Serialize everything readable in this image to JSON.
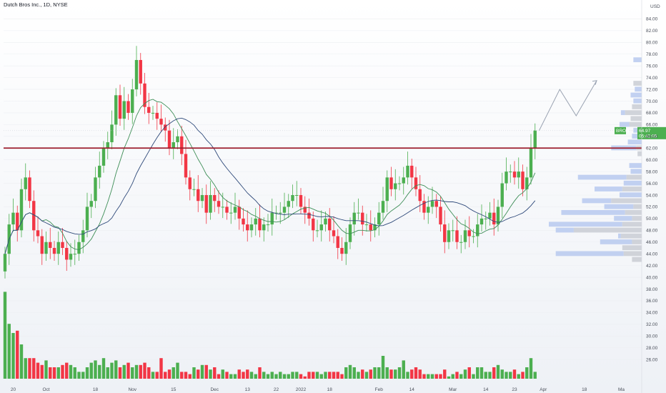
{
  "header": {
    "title": "Dutch Bros Inc., 1D, NYSE"
  },
  "price_scale": {
    "currency": "USD",
    "last_ticker": "BROS",
    "last_price": "64.97",
    "countdown": "05:43:05"
  },
  "colors": {
    "up": "#4caf50",
    "down": "#f23645",
    "ma_fast": "#3e8e57",
    "ma_slow": "#2f4a7a",
    "level": "#9c1c2c",
    "profile_up": "#b7c9ef",
    "profile_down": "#c9ccd4"
  },
  "chart_data": {
    "type": "candlestick",
    "title": "Dutch Bros Inc., 1D, NYSE",
    "ylim": [
      22,
      86
    ],
    "y_ticks": [
      26,
      28,
      30,
      32,
      34,
      36,
      38,
      40,
      42,
      44,
      46,
      48,
      50,
      52,
      54,
      56,
      58,
      60,
      62,
      64,
      66,
      68,
      70,
      72,
      74,
      76,
      78,
      80,
      82,
      84
    ],
    "x_ticks": [
      {
        "label": "20",
        "i": 2
      },
      {
        "label": "Oct",
        "i": 10
      },
      {
        "label": "18",
        "i": 22
      },
      {
        "label": "Nov",
        "i": 31
      },
      {
        "label": "15",
        "i": 41
      },
      {
        "label": "Dec",
        "i": 51
      },
      {
        "label": "13",
        "i": 59
      },
      {
        "label": "22",
        "i": 66
      },
      {
        "label": "2022",
        "i": 72
      },
      {
        "label": "18",
        "i": 79
      },
      {
        "label": "Feb",
        "i": 91
      },
      {
        "label": "14",
        "i": 99
      },
      {
        "label": "Mar",
        "i": 109
      },
      {
        "label": "14",
        "i": 117
      },
      {
        "label": "23",
        "i": 124
      },
      {
        "label": "Apr",
        "i": 131
      },
      {
        "label": "18",
        "i": 141
      },
      {
        "label": "Ma",
        "i": 150
      }
    ],
    "close": [
      44,
      49,
      51,
      48,
      55,
      57,
      53,
      48,
      47,
      44,
      46,
      45,
      44,
      46,
      45,
      43,
      44,
      44,
      46,
      48,
      52,
      53,
      57,
      59,
      62,
      63,
      66,
      71,
      67,
      70,
      68,
      72,
      77,
      73,
      69,
      68,
      68,
      67,
      66,
      65,
      62,
      63,
      64,
      61,
      57,
      55,
      55,
      53,
      54,
      51,
      54,
      53,
      52,
      52,
      51,
      51,
      52,
      50,
      49,
      48,
      49,
      50,
      48,
      49,
      49,
      51,
      51,
      51,
      52,
      53,
      54,
      54,
      52,
      51,
      50,
      48,
      48,
      49,
      50,
      48,
      47,
      45,
      44,
      46,
      49,
      51,
      51,
      49,
      49,
      48,
      49,
      51,
      53,
      57,
      55,
      56,
      56,
      57,
      59,
      57,
      55,
      53,
      51,
      52,
      53,
      52,
      49,
      46,
      48,
      48,
      46,
      46,
      48,
      47,
      47,
      49,
      50,
      50,
      51,
      49,
      52,
      56,
      58,
      58,
      57,
      58,
      55,
      57,
      62,
      65
    ],
    "volume": [
      38,
      24,
      20,
      21,
      15,
      9,
      9,
      9,
      7,
      6,
      8,
      5,
      5,
      5,
      6,
      7,
      6,
      5,
      3,
      3,
      5,
      7,
      8,
      6,
      9,
      5,
      7,
      8,
      5,
      6,
      7,
      5,
      6,
      6,
      7,
      5,
      3,
      3,
      9,
      3,
      4,
      5,
      7,
      3,
      3,
      2,
      5,
      4,
      6,
      6,
      4,
      5,
      2,
      4,
      3,
      2,
      2,
      4,
      3,
      4,
      3,
      2,
      5,
      3,
      2,
      3,
      2,
      3,
      2,
      2,
      3,
      3,
      2,
      1,
      3,
      3,
      3,
      2,
      3,
      3,
      3,
      3,
      2,
      5,
      6,
      5,
      3,
      4,
      3,
      4,
      5,
      5,
      10,
      5,
      4,
      4,
      5,
      8,
      3,
      4,
      5,
      4,
      2,
      2,
      2,
      2,
      2,
      4,
      1,
      2,
      3,
      2,
      4,
      5,
      2,
      5,
      5,
      3,
      3,
      5,
      6,
      4,
      3,
      3,
      4,
      2,
      3,
      5,
      9,
      3
    ],
    "volume_legend": {
      "max_visible": 40
    },
    "price_level": 62,
    "projection": [
      [
        130,
        65
      ],
      [
        135,
        72
      ],
      [
        139,
        67.5
      ],
      [
        144,
        73.5
      ]
    ],
    "series": [
      {
        "values": "close"
      }
    ]
  }
}
